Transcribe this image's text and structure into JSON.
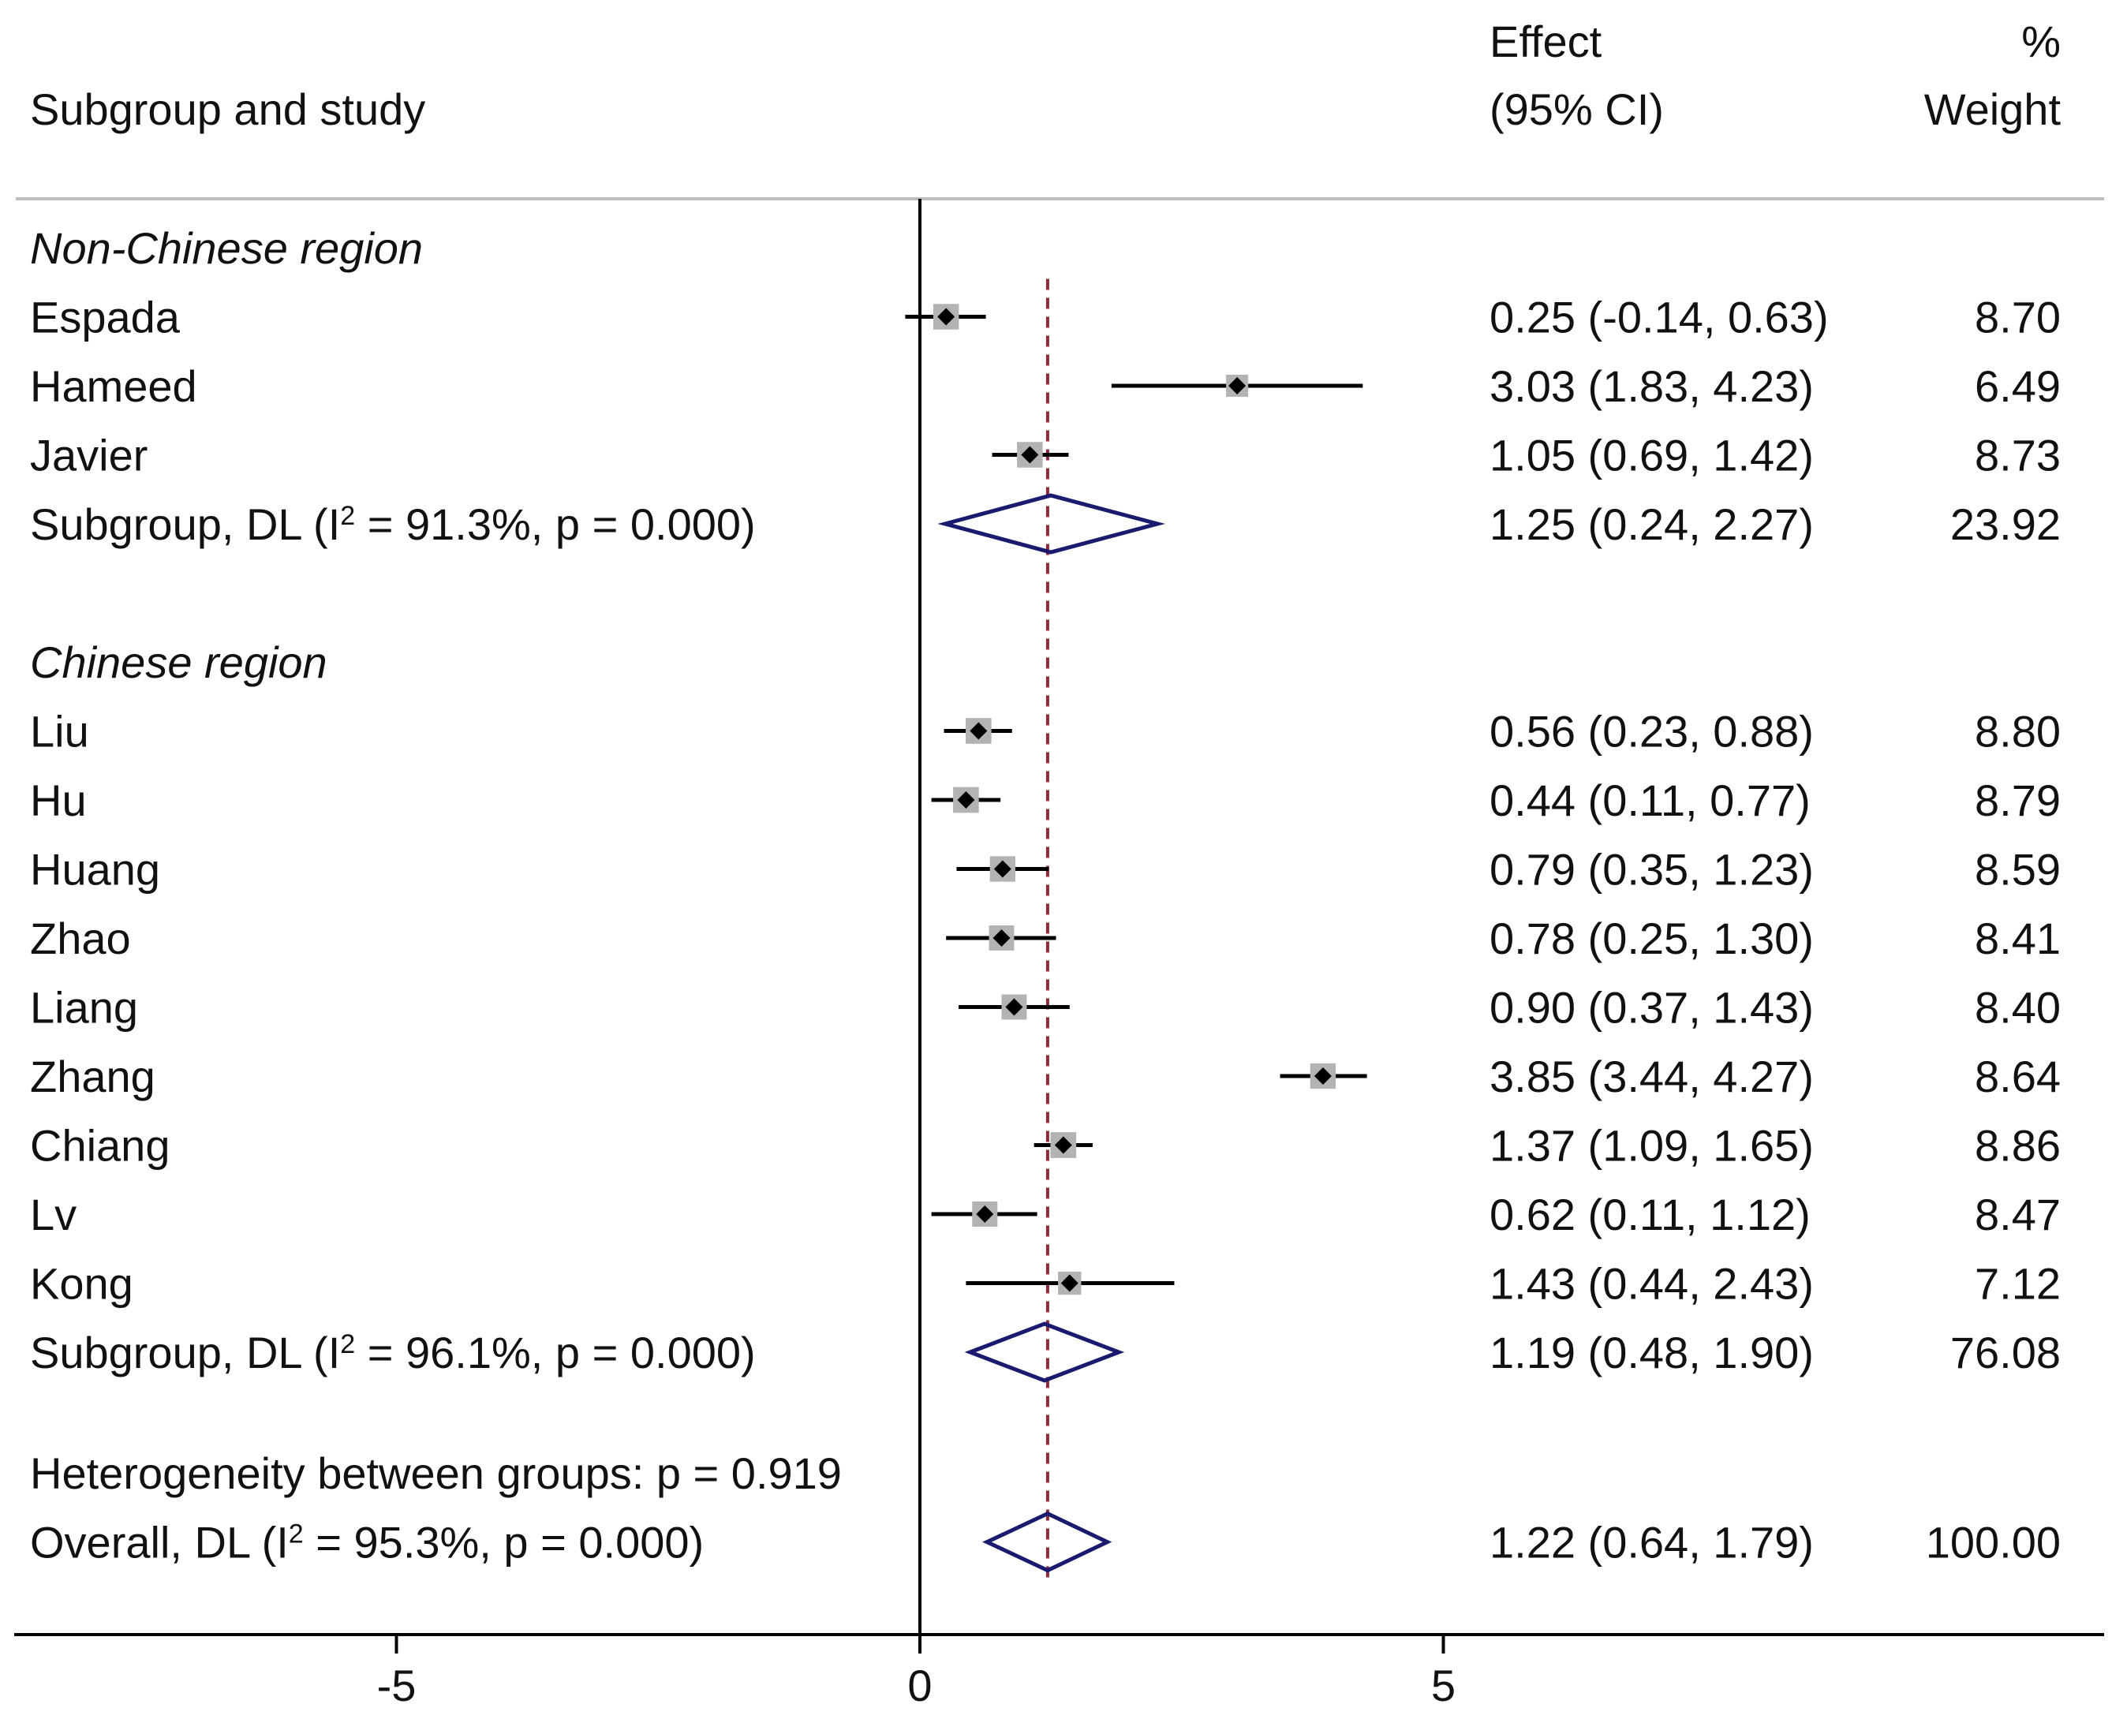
{
  "chart_data": {
    "type": "forest",
    "headers": {
      "study": "Subgroup and study",
      "effect_line1": "Effect",
      "effect_line2": "(95% CI)",
      "weight_line1": "%",
      "weight_line2": "Weight"
    },
    "x_axis": {
      "ticks": [
        -5,
        0,
        5
      ],
      "tick_labels": [
        "-5",
        "0",
        "5"
      ],
      "range": [
        -8.7,
        11.2
      ]
    },
    "reference_line": 0,
    "overall_line": 1.22,
    "groups": [
      {
        "title": "Non-Chinese region",
        "studies": [
          {
            "name": "Espada",
            "effect": 0.25,
            "lo": -0.14,
            "hi": 0.63,
            "effect_text": "0.25 (-0.14, 0.63)",
            "weight": 8.7,
            "weight_text": "8.70"
          },
          {
            "name": "Hameed",
            "effect": 3.03,
            "lo": 1.83,
            "hi": 4.23,
            "effect_text": "3.03 (1.83, 4.23)",
            "weight": 6.49,
            "weight_text": "6.49"
          },
          {
            "name": "Javier",
            "effect": 1.05,
            "lo": 0.69,
            "hi": 1.42,
            "effect_text": "1.05 (0.69, 1.42)",
            "weight": 8.73,
            "weight_text": "8.73"
          }
        ],
        "subgroup": {
          "label_pre": "Subgroup, DL (I",
          "label_sup": "2",
          "label_post": " = 91.3%, p = 0.000)",
          "effect": 1.25,
          "lo": 0.24,
          "hi": 2.27,
          "effect_text": "1.25 (0.24, 2.27)",
          "weight_text": "23.92"
        }
      },
      {
        "title": "Chinese region",
        "studies": [
          {
            "name": "Liu",
            "effect": 0.56,
            "lo": 0.23,
            "hi": 0.88,
            "effect_text": "0.56 (0.23, 0.88)",
            "weight": 8.8,
            "weight_text": "8.80"
          },
          {
            "name": "Hu",
            "effect": 0.44,
            "lo": 0.11,
            "hi": 0.77,
            "effect_text": "0.44 (0.11, 0.77)",
            "weight": 8.79,
            "weight_text": "8.79"
          },
          {
            "name": "Huang",
            "effect": 0.79,
            "lo": 0.35,
            "hi": 1.23,
            "effect_text": "0.79 (0.35, 1.23)",
            "weight": 8.59,
            "weight_text": "8.59"
          },
          {
            "name": "Zhao",
            "effect": 0.78,
            "lo": 0.25,
            "hi": 1.3,
            "effect_text": "0.78 (0.25, 1.30)",
            "weight": 8.41,
            "weight_text": "8.41"
          },
          {
            "name": "Liang",
            "effect": 0.9,
            "lo": 0.37,
            "hi": 1.43,
            "effect_text": "0.90 (0.37, 1.43)",
            "weight": 8.4,
            "weight_text": "8.40"
          },
          {
            "name": "Zhang",
            "effect": 3.85,
            "lo": 3.44,
            "hi": 4.27,
            "effect_text": "3.85 (3.44, 4.27)",
            "weight": 8.64,
            "weight_text": "8.64"
          },
          {
            "name": "Chiang",
            "effect": 1.37,
            "lo": 1.09,
            "hi": 1.65,
            "effect_text": "1.37 (1.09, 1.65)",
            "weight": 8.86,
            "weight_text": "8.86"
          },
          {
            "name": "Lv",
            "effect": 0.62,
            "lo": 0.11,
            "hi": 1.12,
            "effect_text": "0.62 (0.11, 1.12)",
            "weight": 8.47,
            "weight_text": "8.47"
          },
          {
            "name": "Kong",
            "effect": 1.43,
            "lo": 0.44,
            "hi": 2.43,
            "effect_text": "1.43 (0.44, 2.43)",
            "weight": 7.12,
            "weight_text": "7.12"
          }
        ],
        "subgroup": {
          "label_pre": "Subgroup, DL (I",
          "label_sup": "2",
          "label_post": " = 96.1%, p = 0.000)",
          "effect": 1.19,
          "lo": 0.48,
          "hi": 1.9,
          "effect_text": "1.19 (0.48, 1.90)",
          "weight_text": "76.08"
        }
      }
    ],
    "heterogeneity_text": "Heterogeneity between groups: p = 0.919",
    "overall": {
      "label_pre": "Overall, DL (I",
      "label_sup": "2",
      "label_post": " = 95.3%, p = 0.000)",
      "effect": 1.22,
      "lo": 0.64,
      "hi": 1.79,
      "effect_text": "1.22 (0.64, 1.79)",
      "weight_text": "100.00"
    },
    "colors": {
      "ci_line": "#000000",
      "point": "#000000",
      "weight_box": "#b3b3b3",
      "diamond": "#1a1a6e",
      "overall_line": "#8b2a3a",
      "axis": "#000000",
      "header_rule": "#bdbdbd"
    }
  }
}
